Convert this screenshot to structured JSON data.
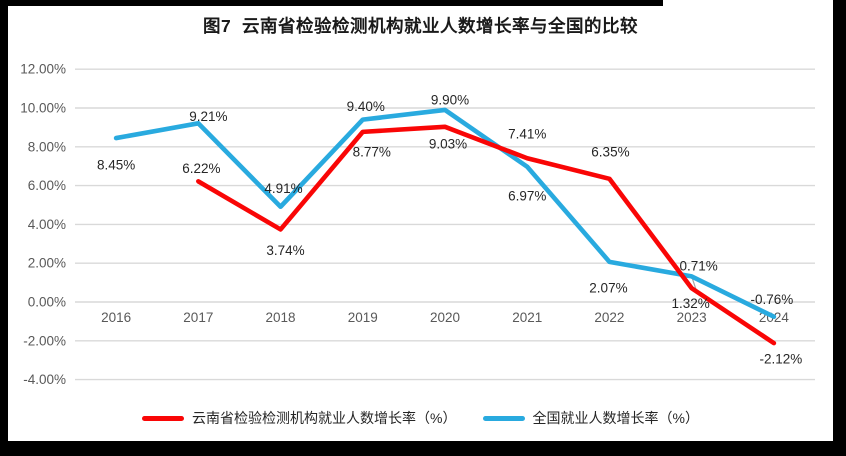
{
  "frame": {
    "border_color": "#000000",
    "background_color": "#ffffff"
  },
  "title": "图7  云南省检验检测机构就业人数增长率与全国的比较",
  "legend": [
    {
      "label": "云南省检验检测机构就业人数增长率（%）",
      "color": "#f90606"
    },
    {
      "label": "全国就业人数增长率（%）",
      "color": "#29aadf"
    }
  ],
  "colors": {
    "yunnan_series": "#f90606",
    "national_series": "#29aadf",
    "gridline": "#d9d9d9",
    "axis_text": "#595959",
    "data_label_text": "#262626",
    "leader_line": "#a6a6a6"
  },
  "chart_data": {
    "type": "line",
    "title": "图7  云南省检验检测机构就业人数增长率与全国的比较",
    "categories": [
      "2016",
      "2017",
      "2018",
      "2019",
      "2020",
      "2021",
      "2022",
      "2023",
      "2024"
    ],
    "series": [
      {
        "name": "云南省检验检测机构就业人数增长率（%）",
        "color": "#f90606",
        "values": [
          null,
          6.22,
          3.74,
          8.77,
          9.03,
          7.41,
          6.35,
          0.71,
          -2.12
        ]
      },
      {
        "name": "全国就业人数增长率（%）",
        "color": "#29aadf",
        "values": [
          8.45,
          9.21,
          4.91,
          9.4,
          9.9,
          6.97,
          2.07,
          1.32,
          -0.76
        ]
      }
    ],
    "xlabel": "",
    "ylabel": "",
    "ylim": [
      -4,
      12
    ],
    "y_tick_step": 2,
    "y_tick_format": "percent_2dp",
    "grid": true,
    "legend_position": "bottom",
    "data_labels": true,
    "label_offsets": [
      [
        null,
        [
          3,
          -13
        ],
        [
          5,
          21
        ],
        [
          9,
          20
        ],
        [
          3,
          17
        ],
        [
          0,
          -24
        ],
        [
          1,
          -27
        ],
        [
          7,
          -22
        ],
        [
          7,
          16
        ]
      ],
      [
        [
          0,
          27
        ],
        [
          10,
          -7
        ],
        [
          3,
          -18
        ],
        [
          3,
          -13
        ],
        [
          5,
          -10
        ],
        [
          0,
          29
        ],
        [
          -1,
          26
        ],
        [
          -1,
          27
        ],
        [
          -2,
          -17
        ]
      ]
    ],
    "leader_line": {
      "series": 1,
      "index": 7,
      "dx": 5,
      "dy": 15
    }
  }
}
